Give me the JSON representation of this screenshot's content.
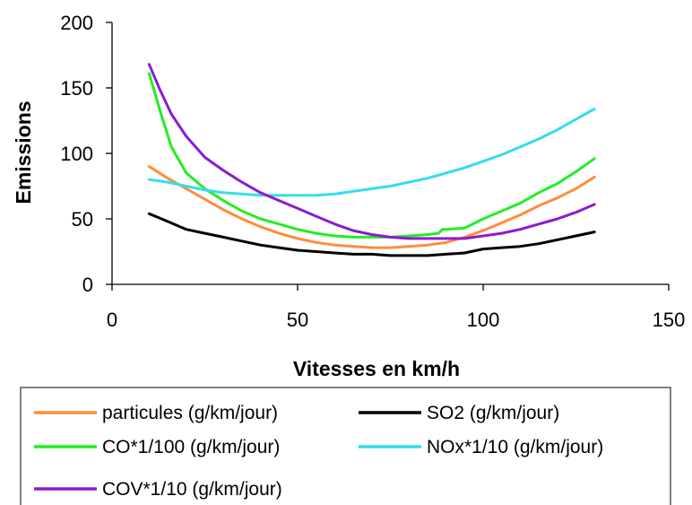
{
  "chart_data": {
    "type": "line",
    "title": "",
    "xlabel": "Vitesses en km/h",
    "ylabel": "Emissions",
    "xlim": [
      0,
      150
    ],
    "ylim": [
      0,
      200
    ],
    "x_ticks": [
      0,
      50,
      100,
      150
    ],
    "y_ticks": [
      0,
      50,
      100,
      150,
      200
    ],
    "grid": false,
    "legend_position": "bottom",
    "series": [
      {
        "name": "particules (g/km/jour)",
        "color": "#ff8c3c",
        "x": [
          10,
          15,
          20,
          25,
          30,
          35,
          40,
          45,
          50,
          55,
          60,
          65,
          70,
          75,
          80,
          85,
          90,
          95,
          100,
          105,
          110,
          115,
          120,
          125,
          130
        ],
        "y": [
          90,
          81,
          73,
          65,
          57,
          50,
          44,
          39,
          35,
          32,
          30,
          29,
          28,
          28,
          29,
          30,
          32,
          36,
          41,
          47,
          53,
          60,
          66,
          73,
          82
        ]
      },
      {
        "name": "SO2 (g/km/jour)",
        "color": "#000000",
        "x": [
          10,
          15,
          20,
          25,
          30,
          35,
          40,
          45,
          50,
          55,
          60,
          65,
          70,
          75,
          80,
          85,
          90,
          95,
          100,
          105,
          110,
          115,
          120,
          125,
          130
        ],
        "y": [
          54,
          48,
          42,
          39,
          36,
          33,
          30,
          28,
          26,
          25,
          24,
          23,
          23,
          22,
          22,
          22,
          23,
          24,
          27,
          28,
          29,
          31,
          34,
          37,
          40
        ]
      },
      {
        "name": "CO*1/100 (g/km/jour)",
        "color": "#22ee22",
        "x": [
          10,
          13,
          16,
          20,
          25,
          30,
          35,
          40,
          45,
          50,
          55,
          60,
          65,
          70,
          75,
          80,
          85,
          88,
          89,
          90,
          95,
          100,
          105,
          110,
          115,
          120,
          125,
          130
        ],
        "y": [
          161,
          132,
          105,
          85,
          73,
          64,
          56,
          50,
          46,
          42,
          39,
          37,
          36,
          36,
          36,
          37,
          38,
          39,
          42,
          42,
          43,
          50,
          56,
          62,
          70,
          77,
          86,
          96
        ]
      },
      {
        "name": "NOx*1/10 (g/km/jour)",
        "color": "#33ddee",
        "x": [
          10,
          15,
          20,
          25,
          30,
          35,
          40,
          45,
          50,
          55,
          60,
          65,
          70,
          75,
          80,
          85,
          90,
          95,
          100,
          105,
          110,
          115,
          120,
          125,
          130
        ],
        "y": [
          80,
          78,
          75,
          72,
          70,
          69,
          68,
          68,
          68,
          68,
          69,
          71,
          73,
          75,
          78,
          81,
          85,
          89,
          94,
          99,
          105,
          111,
          118,
          126,
          134
        ]
      },
      {
        "name": "COV*1/10 (g/km/jour)",
        "color": "#8e1ad0",
        "x": [
          10,
          13,
          16,
          20,
          25,
          30,
          35,
          40,
          45,
          50,
          55,
          60,
          65,
          70,
          75,
          80,
          85,
          90,
          95,
          100,
          105,
          110,
          115,
          120,
          125,
          130
        ],
        "y": [
          168,
          148,
          130,
          113,
          97,
          87,
          78,
          70,
          64,
          58,
          52,
          46,
          41,
          38,
          36,
          35,
          35,
          35,
          35,
          37,
          39,
          42,
          46,
          50,
          55,
          61
        ]
      }
    ]
  }
}
